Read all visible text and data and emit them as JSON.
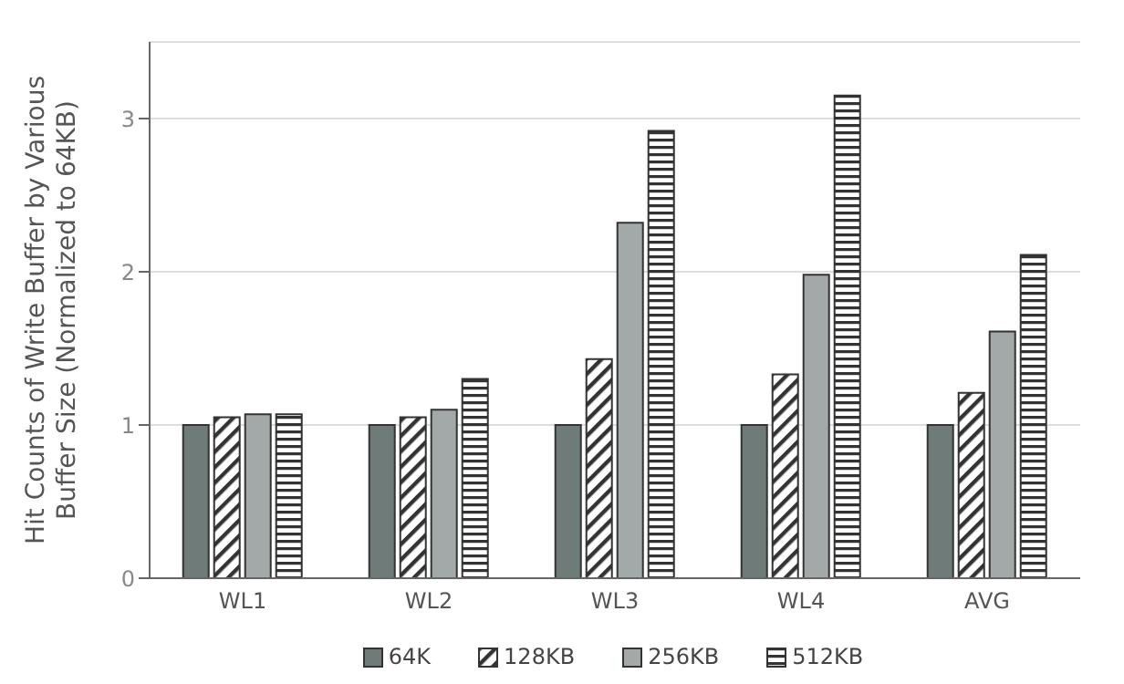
{
  "chart_data": {
    "type": "bar",
    "ylabel": "Hit Counts of Write Buffer by Various Buffer Size  (Normalized to 64KB)",
    "categories": [
      "WL1",
      "WL2",
      "WL3",
      "WL4",
      "AVG"
    ],
    "series": [
      {
        "name": "64K",
        "color": "#6f7b78",
        "values": [
          1,
          1,
          1,
          1,
          1
        ]
      },
      {
        "name": "128KB",
        "color": "#333333",
        "values": [
          1.05,
          1.05,
          1.43,
          1.33,
          1.21
        ]
      },
      {
        "name": "256KB",
        "color": "#a3a8a8",
        "values": [
          1.07,
          1.1,
          2.32,
          1.98,
          1.61
        ]
      },
      {
        "name": "512KB",
        "color": "#333333",
        "values": [
          1.07,
          1.3,
          2.92,
          3.15,
          2.11
        ]
      }
    ],
    "ylim": [
      0,
      3.5
    ],
    "yticks": [
      0,
      1,
      2,
      3
    ],
    "grid": "y",
    "legend": "bottom"
  }
}
